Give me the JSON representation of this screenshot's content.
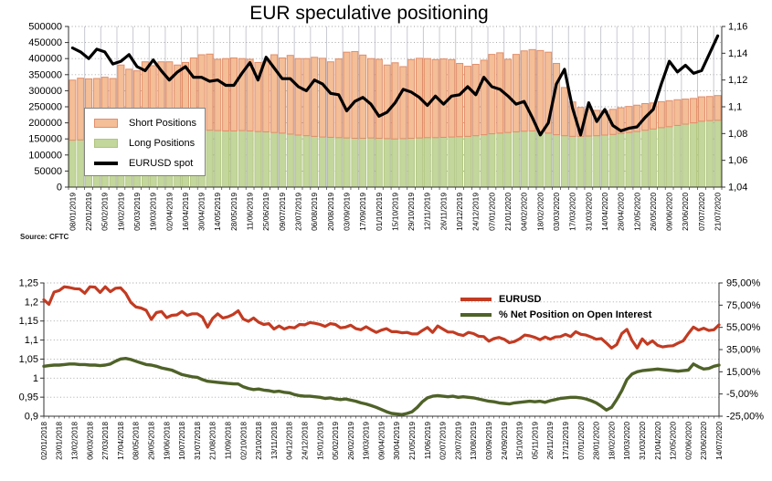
{
  "page": {
    "background": "#ffffff"
  },
  "chart_data": [
    {
      "type": "combo-stacked-bar-line",
      "title": "EUR speculative positioning",
      "source": "Source: CFTC",
      "legend": [
        "Short Positions",
        "Long Positions",
        "EURUSD spot"
      ],
      "legend_position": "middle-left-boxed",
      "grid": "horizontal-dotted-and-vertical",
      "colors": {
        "short_fill": "#F4BE97",
        "short_border": "#E18E6A",
        "long_fill": "#C3D69B",
        "long_border": "#AFC47E",
        "spot_line": "#000000",
        "hgrid": "#9e9e9e",
        "vgrid": "#c8c8d2",
        "axis": "#333333"
      },
      "left_axis": {
        "min": 0,
        "max": 500000,
        "labels": [
          "500000",
          "450000",
          "400000",
          "350000",
          "300000",
          "250000",
          "200000",
          "150000",
          "100000",
          "50000",
          "0"
        ]
      },
      "right_axis": {
        "min": 1.04,
        "max": 1.16,
        "labels": [
          "1,16",
          "1,14",
          "1,12",
          "1,1",
          "1,08",
          "1,06",
          "1,04"
        ]
      },
      "label_every": 2,
      "x_labels": [
        "08/01/2019",
        "22/01/2019",
        "05/02/2019",
        "19/02/2019",
        "05/03/2019",
        "19/03/2019",
        "02/04/2019",
        "16/04/2019",
        "30/04/2019",
        "14/05/2019",
        "28/05/2019",
        "11/06/2019",
        "25/06/2019",
        "09/07/2019",
        "23/07/2019",
        "06/08/2019",
        "20/08/2019",
        "03/09/2019",
        "17/09/2019",
        "01/10/2019",
        "15/10/2019",
        "29/10/2019",
        "12/11/2019",
        "26/11/2019",
        "10/12/2019",
        "24/12/2019",
        "07/01/2020",
        "21/01/2020",
        "04/02/2020",
        "18/02/2020",
        "03/03/2020",
        "17/03/2020",
        "31/03/2020",
        "14/04/2020",
        "28/04/2020",
        "12/05/2020",
        "26/05/2020",
        "09/06/2020",
        "23/06/2020",
        "07/07/2020",
        "21/07/2020"
      ],
      "series": {
        "short_positions": {
          "name": "Short Positions",
          "type": "bar-stacked",
          "values": [
            187000,
            192000,
            189000,
            190000,
            192000,
            186000,
            225000,
            209000,
            200000,
            225000,
            210000,
            220000,
            218000,
            206000,
            212000,
            224000,
            234000,
            237000,
            222000,
            225000,
            227000,
            224000,
            223000,
            215000,
            218000,
            242000,
            234000,
            245000,
            238000,
            240000,
            246000,
            245000,
            235000,
            245000,
            267000,
            270000,
            259000,
            247000,
            246000,
            229000,
            237000,
            224000,
            245000,
            248000,
            246000,
            243000,
            244000,
            241000,
            228000,
            218000,
            222000,
            232000,
            247000,
            250000,
            228000,
            241000,
            250000,
            253000,
            253000,
            252000,
            222000,
            150000,
            107000,
            90000,
            84000,
            79000,
            76000,
            78000,
            80000,
            81000,
            82000,
            83000,
            81000,
            81000,
            81000,
            80000,
            78000,
            76000,
            76000,
            75000,
            77000
          ]
        },
        "long_positions": {
          "name": "Long Positions",
          "type": "bar-stacked",
          "values": [
            146000,
            147000,
            148000,
            148000,
            150000,
            152000,
            155000,
            158000,
            162000,
            165000,
            168000,
            170000,
            172000,
            174000,
            176000,
            178000,
            178000,
            177000,
            176000,
            175000,
            175000,
            176000,
            175000,
            173000,
            172000,
            170000,
            168000,
            165000,
            162000,
            160000,
            158000,
            156000,
            155000,
            154000,
            153000,
            152000,
            152000,
            153000,
            152000,
            151000,
            150000,
            151000,
            152000,
            153000,
            154000,
            154000,
            155000,
            156000,
            157000,
            158000,
            160000,
            163000,
            166000,
            168000,
            170000,
            172000,
            174000,
            175000,
            172000,
            168000,
            163000,
            160000,
            158000,
            158000,
            159000,
            160000,
            162000,
            164000,
            167000,
            170000,
            173000,
            177000,
            181000,
            185000,
            188000,
            192000,
            196000,
            200000,
            205000,
            207000,
            208000
          ]
        },
        "eurusd_spot": {
          "name": "EURUSD spot",
          "type": "line",
          "axis": "right",
          "values": [
            1.144,
            1.141,
            1.136,
            1.143,
            1.141,
            1.132,
            1.134,
            1.139,
            1.13,
            1.127,
            1.135,
            1.127,
            1.12,
            1.126,
            1.13,
            1.122,
            1.122,
            1.119,
            1.12,
            1.116,
            1.116,
            1.125,
            1.133,
            1.12,
            1.137,
            1.129,
            1.121,
            1.121,
            1.115,
            1.112,
            1.12,
            1.117,
            1.11,
            1.109,
            1.097,
            1.104,
            1.107,
            1.102,
            1.093,
            1.096,
            1.103,
            1.113,
            1.111,
            1.107,
            1.101,
            1.108,
            1.102,
            1.108,
            1.109,
            1.115,
            1.109,
            1.122,
            1.115,
            1.113,
            1.108,
            1.102,
            1.104,
            1.092,
            1.079,
            1.088,
            1.117,
            1.128,
            1.099,
            1.079,
            1.103,
            1.089,
            1.098,
            1.086,
            1.082,
            1.084,
            1.085,
            1.092,
            1.098,
            1.117,
            1.134,
            1.126,
            1.131,
            1.125,
            1.127,
            1.14,
            1.153
          ]
        }
      }
    },
    {
      "type": "line-2axis",
      "title": "",
      "legend": [
        "EURUSD",
        "% Net Position on Open Interest"
      ],
      "legend_position": "top-center-unboxed",
      "grid": "horizontal-dotted",
      "colors": {
        "eurusd": "#C23B22",
        "net_pct": "#4F6228",
        "hgrid": "#9e9e9e",
        "axis": "#333333"
      },
      "left_axis": {
        "min": 0.9,
        "max": 1.25,
        "labels": [
          "1,25",
          "1,2",
          "1,15",
          "1,1",
          "1,05",
          "1",
          "0,95",
          "0,9"
        ]
      },
      "right_axis": {
        "min": -25,
        "max": 95,
        "labels": [
          "95,00%",
          "75,00%",
          "55,00%",
          "35,00%",
          "15,00%",
          "-5,00%",
          "-25,00%"
        ]
      },
      "label_every": 3,
      "x_labels": [
        "02/01/2018",
        "23/01/2018",
        "13/02/2018",
        "06/03/2018",
        "27/03/2018",
        "17/04/2018",
        "08/05/2018",
        "29/05/2018",
        "19/06/2018",
        "10/07/2018",
        "31/07/2018",
        "21/08/2018",
        "11/09/2018",
        "02/10/2018",
        "23/10/2018",
        "13/11/2018",
        "04/12/2018",
        "24/12/2018",
        "15/01/2019",
        "05/02/2019",
        "26/02/2019",
        "19/03/2019",
        "09/04/2019",
        "30/04/2019",
        "21/05/2019",
        "11/06/2019",
        "02/07/2019",
        "23/07/2019",
        "13/08/2019",
        "03/09/2019",
        "24/09/2019",
        "15/10/2019",
        "05/11/2019",
        "26/11/2019",
        "17/12/2019",
        "07/01/2020",
        "28/01/2020",
        "18/02/2020",
        "10/03/2020",
        "31/03/2020",
        "21/04/2020",
        "12/05/2020",
        "02/06/2020",
        "23/06/2020",
        "14/07/2020"
      ],
      "series": {
        "eurusd": {
          "name": "EURUSD",
          "type": "line",
          "axis": "left",
          "values": [
            1.206,
            1.194,
            1.226,
            1.23,
            1.24,
            1.238,
            1.235,
            1.234,
            1.223,
            1.24,
            1.239,
            1.225,
            1.24,
            1.227,
            1.236,
            1.237,
            1.223,
            1.199,
            1.187,
            1.184,
            1.178,
            1.154,
            1.172,
            1.175,
            1.159,
            1.165,
            1.166,
            1.175,
            1.165,
            1.169,
            1.169,
            1.16,
            1.134,
            1.157,
            1.169,
            1.158,
            1.161,
            1.167,
            1.177,
            1.155,
            1.149,
            1.158,
            1.147,
            1.141,
            1.143,
            1.129,
            1.137,
            1.129,
            1.134,
            1.132,
            1.141,
            1.14,
            1.146,
            1.144,
            1.141,
            1.136,
            1.143,
            1.141,
            1.132,
            1.134,
            1.139,
            1.13,
            1.127,
            1.135,
            1.127,
            1.12,
            1.126,
            1.13,
            1.122,
            1.122,
            1.119,
            1.12,
            1.116,
            1.116,
            1.125,
            1.133,
            1.12,
            1.137,
            1.129,
            1.121,
            1.121,
            1.115,
            1.112,
            1.12,
            1.117,
            1.11,
            1.109,
            1.097,
            1.104,
            1.107,
            1.102,
            1.093,
            1.096,
            1.103,
            1.113,
            1.111,
            1.107,
            1.101,
            1.108,
            1.102,
            1.108,
            1.109,
            1.115,
            1.109,
            1.122,
            1.115,
            1.113,
            1.108,
            1.102,
            1.104,
            1.092,
            1.079,
            1.088,
            1.117,
            1.128,
            1.099,
            1.079,
            1.103,
            1.089,
            1.098,
            1.086,
            1.082,
            1.084,
            1.085,
            1.092,
            1.098,
            1.117,
            1.134,
            1.126,
            1.131,
            1.125,
            1.127,
            1.14
          ]
        },
        "net_position_on_open_interest_pct": {
          "name": "% Net Position on Open Interest",
          "type": "line",
          "axis": "right",
          "values": [
            20,
            20.5,
            21,
            21,
            21.5,
            22,
            22,
            21.5,
            21.5,
            21,
            21,
            20.5,
            21,
            22,
            24.5,
            26.5,
            27,
            26,
            24.5,
            23,
            21.5,
            21,
            20,
            18.5,
            17.5,
            16.5,
            14.5,
            12.5,
            11.5,
            10.5,
            10,
            8,
            6.5,
            6,
            5.5,
            5,
            4.5,
            4.2,
            4,
            1.5,
            0,
            -1,
            -0.5,
            -1.5,
            -2,
            -3,
            -2.5,
            -3.5,
            -4,
            -5.5,
            -6.5,
            -7,
            -7,
            -7.5,
            -8,
            -9,
            -8.5,
            -9.5,
            -10,
            -9.5,
            -10.5,
            -11.5,
            -13,
            -14,
            -15.5,
            -17,
            -19,
            -21,
            -22.5,
            -23,
            -23.5,
            -22.5,
            -21,
            -17,
            -12,
            -8.5,
            -7,
            -6.5,
            -7,
            -7.5,
            -7,
            -8,
            -7.5,
            -8,
            -8.5,
            -9.5,
            -10.5,
            -11.5,
            -12,
            -13,
            -13.5,
            -14,
            -13,
            -12.5,
            -12,
            -11.5,
            -12,
            -11.5,
            -12.5,
            -11,
            -10,
            -9,
            -8.5,
            -8,
            -8,
            -8.5,
            -9.5,
            -11,
            -13,
            -16,
            -19.5,
            -17,
            -10,
            -2,
            8,
            13,
            15,
            16,
            16.5,
            17,
            17.5,
            17,
            16.5,
            16,
            15.5,
            16,
            16.5,
            22,
            19.5,
            17.5,
            18,
            20,
            21
          ]
        }
      }
    }
  ]
}
